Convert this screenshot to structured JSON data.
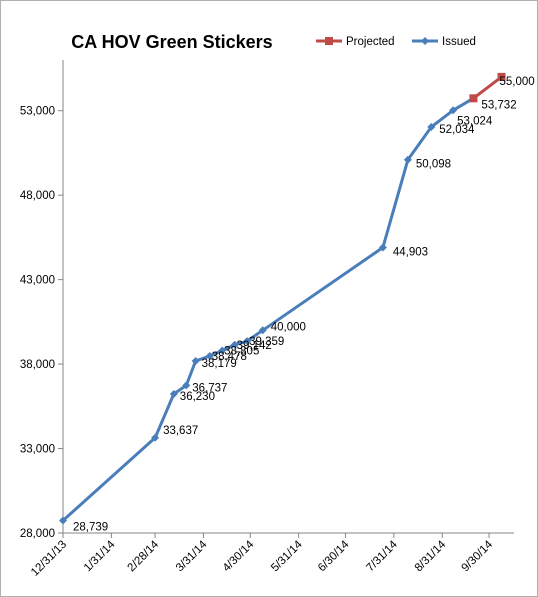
{
  "chart_data": {
    "type": "line",
    "title": "CA HOV Green Stickers",
    "xlabel": "",
    "ylabel": "",
    "ylim": [
      28000,
      56000
    ],
    "yticks": [
      28000,
      33000,
      38000,
      43000,
      48000,
      53000
    ],
    "ytick_labels": [
      "28,000",
      "33,000",
      "38,000",
      "43,000",
      "48,000",
      "53,000"
    ],
    "xticks": [
      "2013-12-31",
      "2014-01-31",
      "2014-02-28",
      "2014-03-31",
      "2014-04-30",
      "2014-05-31",
      "2014-06-30",
      "2014-07-31",
      "2014-08-31",
      "2014-09-30"
    ],
    "xtick_labels": [
      "12/31/13",
      "1/31/14",
      "2/28/14",
      "3/31/14",
      "4/30/14",
      "5/31/14",
      "6/30/14",
      "7/31/14",
      "8/31/14",
      "9/30/14"
    ],
    "xlim": [
      "2013-12-31",
      "2014-10-16"
    ],
    "grid": false,
    "legend_position": "top-right",
    "series": [
      {
        "name": "Issued",
        "color": "#4a7ebb",
        "marker": "diamond",
        "points": [
          {
            "x": "2013-12-31",
            "y": 28739,
            "label": "28,739"
          },
          {
            "x": "2014-02-28",
            "y": 33637,
            "label": "33,637"
          },
          {
            "x": "2014-03-12",
            "y": 36230,
            "label": "36,230"
          },
          {
            "x": "2014-03-20",
            "y": 36737,
            "label": "36,737"
          },
          {
            "x": "2014-03-26",
            "y": 38179,
            "label": "38,179"
          },
          {
            "x": "2014-04-04",
            "y": 38478,
            "label": "38,478"
          },
          {
            "x": "2014-04-12",
            "y": 38805,
            "label": "38,805"
          },
          {
            "x": "2014-04-20",
            "y": 39142,
            "label": "39,142"
          },
          {
            "x": "2014-04-28",
            "y": 39359,
            "label": "39,359"
          },
          {
            "x": "2014-05-08",
            "y": 40000,
            "label": "40,000"
          },
          {
            "x": "2014-07-24",
            "y": 44903,
            "label": "44,903"
          },
          {
            "x": "2014-08-09",
            "y": 50098,
            "label": "50,098"
          },
          {
            "x": "2014-08-24",
            "y": 52034,
            "label": "52,034"
          },
          {
            "x": "2014-09-07",
            "y": 53024,
            "label": "53,024"
          },
          {
            "x": "2014-09-20",
            "y": 53732,
            "label": "53,732"
          }
        ]
      },
      {
        "name": "Projected",
        "color": "#be4b48",
        "marker": "square",
        "points": [
          {
            "x": "2014-09-20",
            "y": 53732,
            "label": ""
          },
          {
            "x": "2014-10-08",
            "y": 55000,
            "label": "55,000"
          }
        ]
      }
    ]
  }
}
